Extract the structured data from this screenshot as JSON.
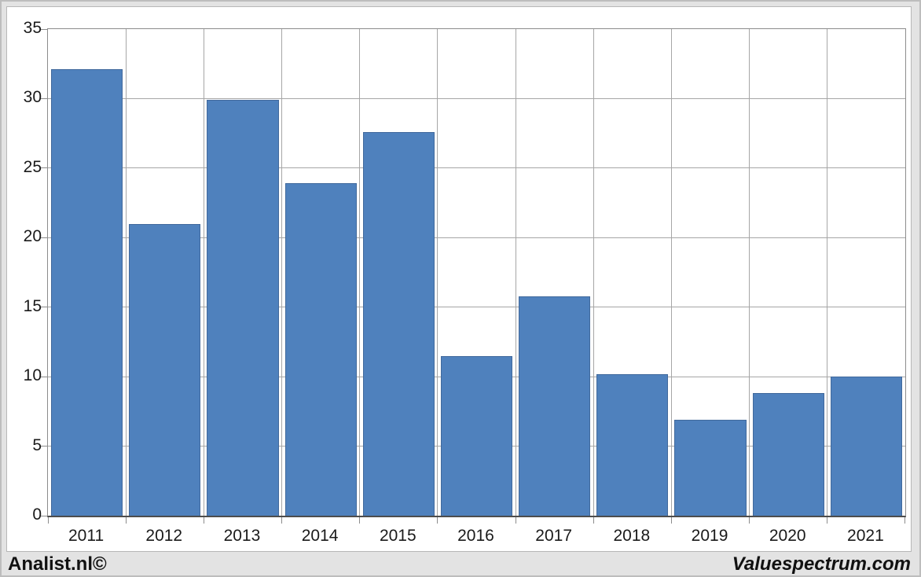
{
  "chart_data": {
    "type": "bar",
    "categories": [
      "2011",
      "2012",
      "2013",
      "2014",
      "2015",
      "2016",
      "2017",
      "2018",
      "2019",
      "2020",
      "2021"
    ],
    "values": [
      32.1,
      21.0,
      29.9,
      23.9,
      27.6,
      11.5,
      15.8,
      10.2,
      6.9,
      8.8,
      10.0
    ],
    "title": "",
    "xlabel": "",
    "ylabel": "",
    "ylim": [
      0,
      35
    ],
    "yticks": [
      0,
      5,
      10,
      15,
      20,
      25,
      30,
      35
    ],
    "grid": true,
    "legend": false,
    "bar_color": "#4f81bd",
    "bar_border_color": "#41699c",
    "gridline_color": "#a6a6a6",
    "axis_color": "#8c8c8c",
    "plot_background": "#ffffff"
  },
  "footer": {
    "left_text": "Analist.nl©",
    "right_text": "Valuespectrum.com"
  },
  "colors": {
    "page_background": "#e3e3e3",
    "panel_background": "#ffffff",
    "panel_border": "#b7b7b7",
    "text": "#1a1a1a"
  }
}
